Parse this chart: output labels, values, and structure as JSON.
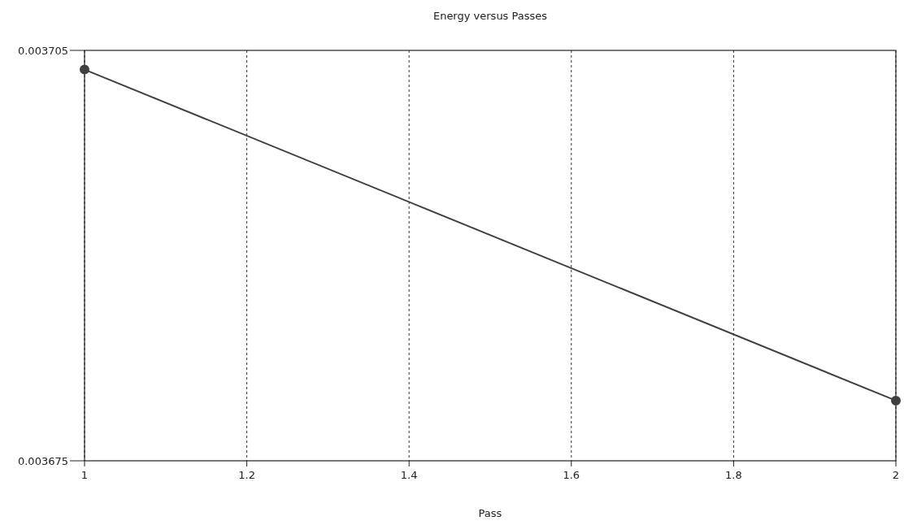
{
  "chart_data": {
    "type": "line",
    "title": "Energy versus Passes",
    "xlabel": "Pass",
    "x": [
      1,
      2
    ],
    "series": [
      {
        "color": "#404040",
        "values": [
          0.0037036,
          0.0036794
        ]
      }
    ],
    "xlim": [
      1,
      2
    ],
    "xticks": [
      1,
      1.2,
      1.4,
      1.6,
      1.8,
      2
    ],
    "ylim": [
      0.003675,
      0.003705
    ],
    "yticks": [
      0.003675,
      0.003705
    ],
    "grid": "x",
    "marker": "circle",
    "line_style": "solid"
  }
}
